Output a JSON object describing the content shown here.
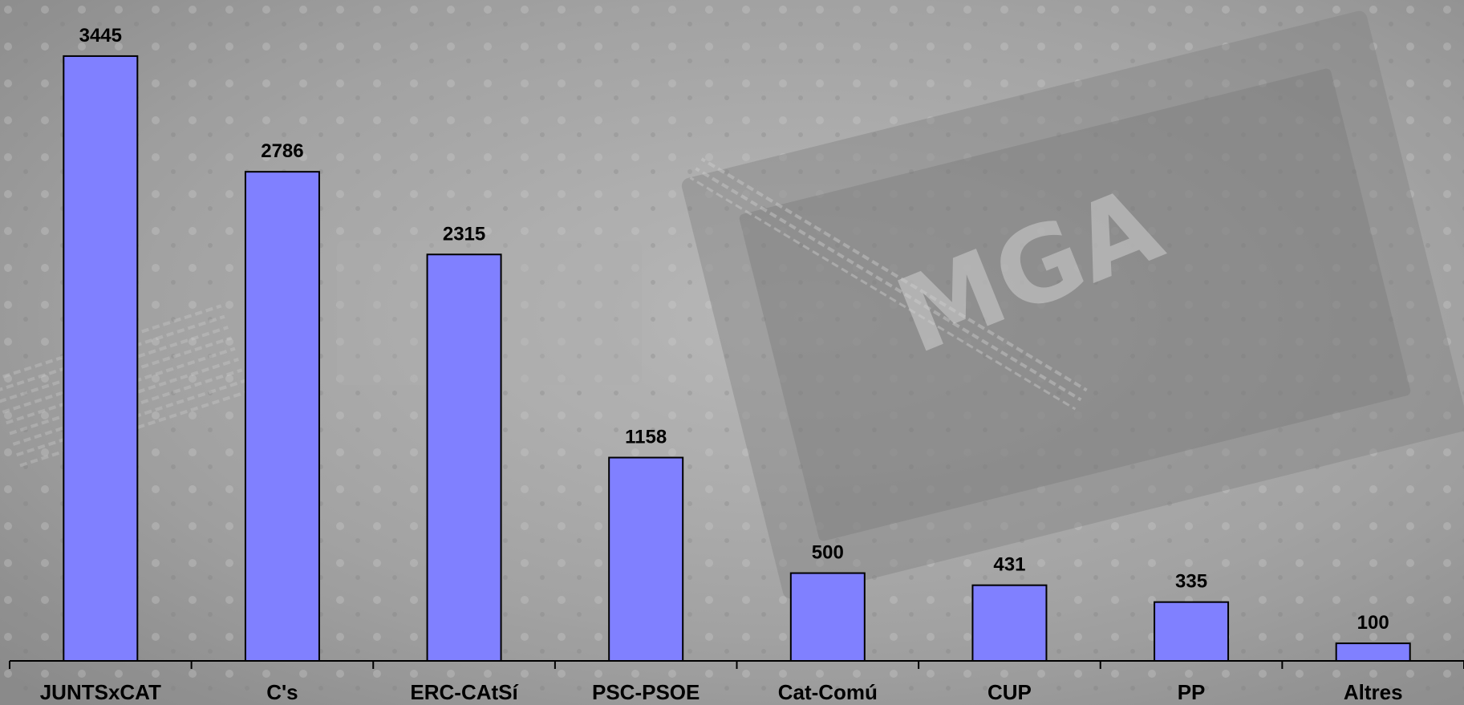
{
  "chart_data": {
    "type": "bar",
    "title": "",
    "xlabel": "",
    "ylabel": "",
    "categories": [
      "JUNTSxCAT",
      "C's",
      "ERC-CAtSí",
      "PSC-PSOE",
      "Cat-Comú",
      "CUP",
      "PP",
      "Altres"
    ],
    "values": [
      3445,
      2786,
      2315,
      1158,
      500,
      431,
      335,
      100
    ],
    "ylim": [
      0,
      3600
    ],
    "grid": false,
    "legend": "none",
    "colors": {
      "bar": "#8080ff",
      "background": "#9a9a9a"
    }
  }
}
